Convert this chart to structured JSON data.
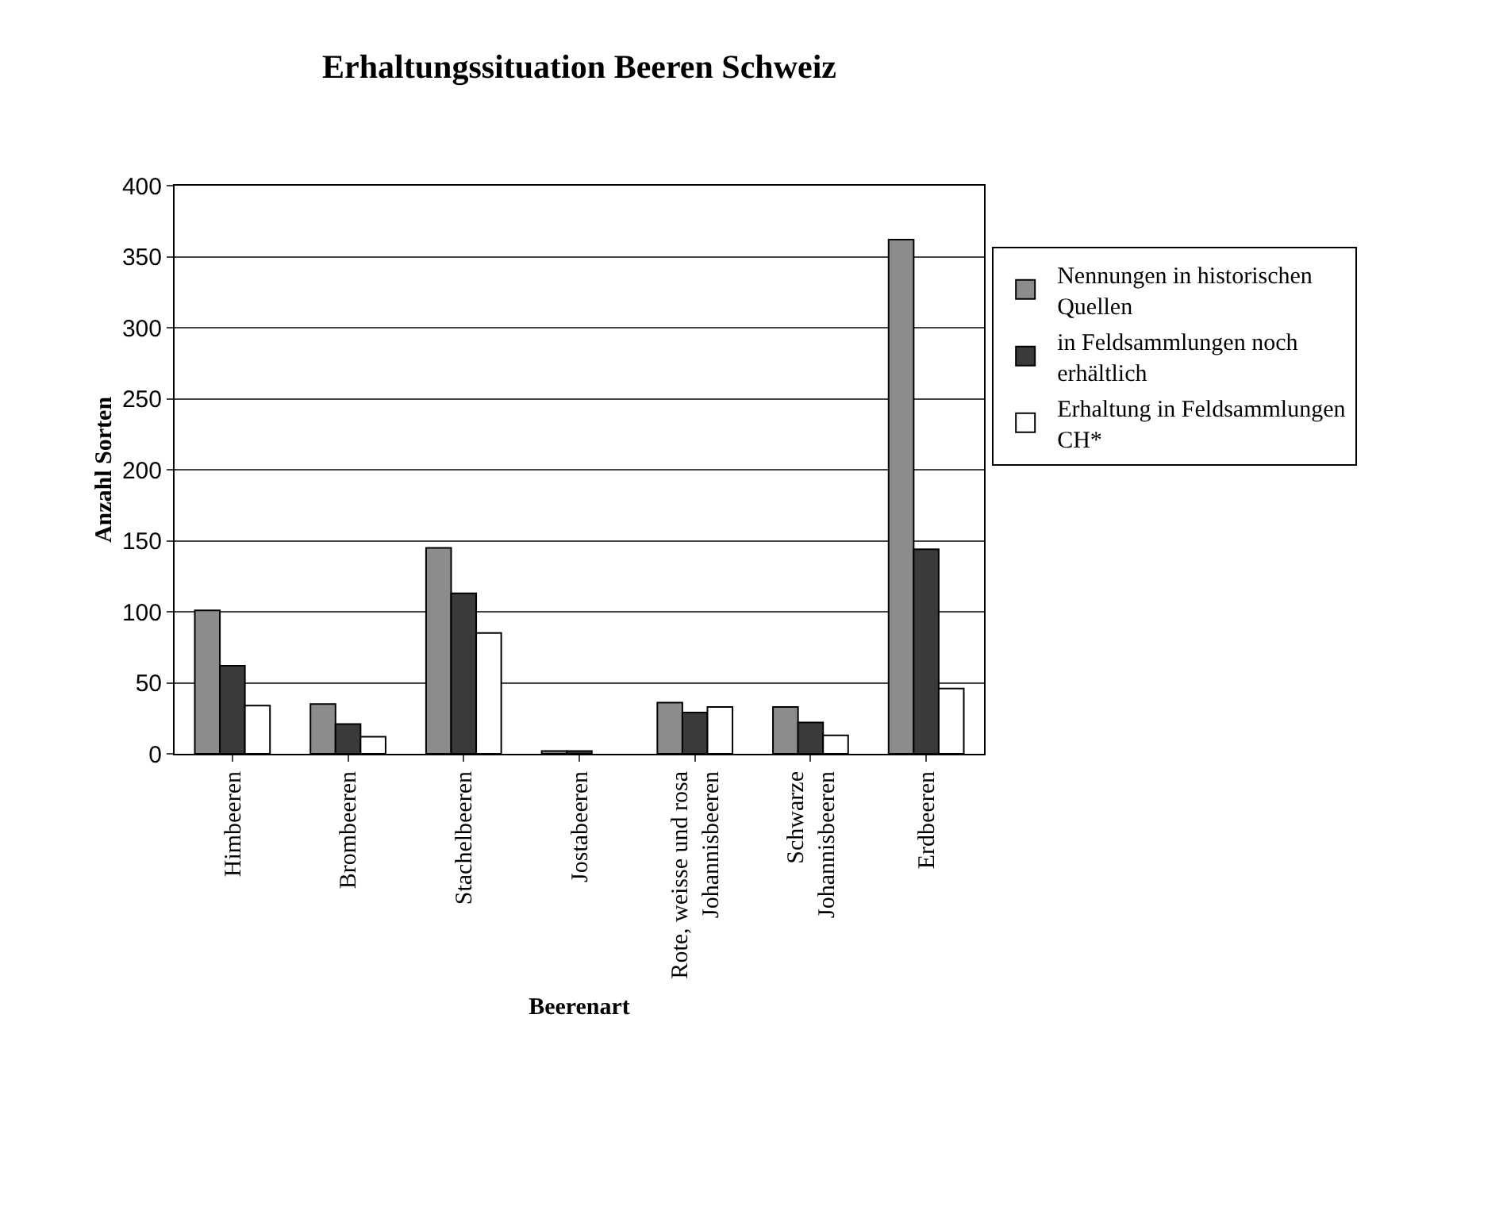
{
  "chart_data": {
    "type": "bar",
    "title": "Erhaltungssituation Beeren Schweiz",
    "xlabel": "Beerenart",
    "ylabel": "Anzahl Sorten",
    "categories": [
      "Himbeeren",
      "Brombeeren",
      "Stachelbeeren",
      "Jostabeeren",
      "Rote, weisse und rosa Johannisbeeren",
      "Schwarze Johannisbeeren",
      "Erdbeeren"
    ],
    "series": [
      {
        "name": "Nennungen in historischen Quellen",
        "color": "#8c8c8c",
        "values": [
          101,
          35,
          145,
          2,
          36,
          33,
          362
        ]
      },
      {
        "name": "in Feldsammlungen noch erhältlich",
        "color": "#3a3a3a",
        "values": [
          62,
          21,
          113,
          2,
          29,
          22,
          144
        ]
      },
      {
        "name": "Erhaltung in Feldsammlungen CH*",
        "color": "#ffffff",
        "values": [
          34,
          12,
          85,
          null,
          33,
          13,
          46
        ]
      }
    ],
    "ylim": [
      0,
      400
    ],
    "yticks": [
      0,
      50,
      100,
      150,
      200,
      250,
      300,
      350,
      400
    ],
    "grid": "y",
    "legend": "right"
  }
}
